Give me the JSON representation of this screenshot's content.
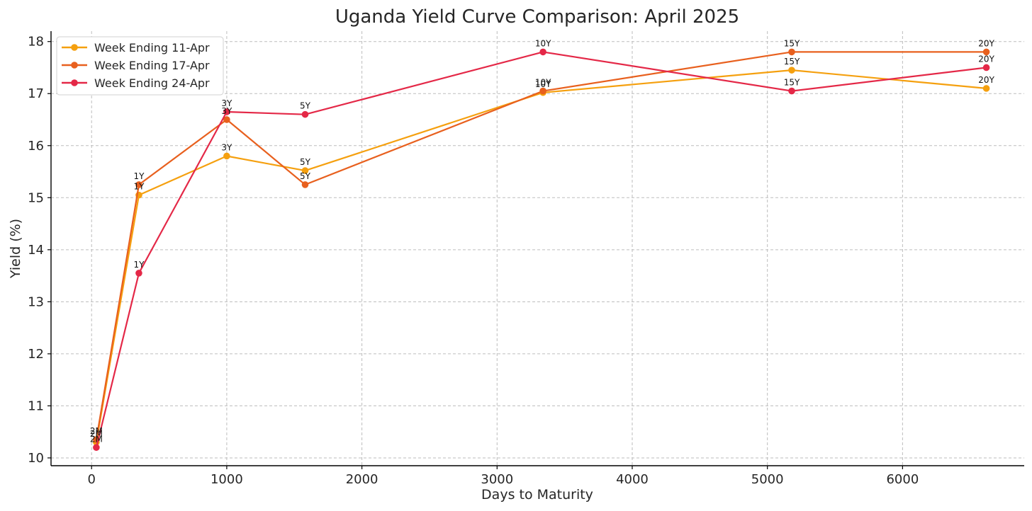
{
  "chart_data": {
    "type": "line",
    "title": "Uganda Yield Curve Comparison: April 2025",
    "xlabel": "Days to Maturity",
    "ylabel": "Yield (%)",
    "xlim": [
      -300,
      6900
    ],
    "ylim": [
      9.85,
      18.2
    ],
    "xticks": [
      0,
      1000,
      2000,
      3000,
      4000,
      5000,
      6000
    ],
    "yticks": [
      10,
      11,
      12,
      13,
      14,
      15,
      16,
      17,
      18
    ],
    "xtick_labels": [
      "0",
      "1000",
      "2000",
      "3000",
      "4000",
      "5000",
      "6000"
    ],
    "ytick_labels": [
      "10",
      "11",
      "12",
      "13",
      "14",
      "15",
      "16",
      "17",
      "18"
    ],
    "grid": true,
    "legend_position": "top-left",
    "series": [
      {
        "name": "Week Ending 11-Apr",
        "color": "#f5a00f",
        "x": [
          35,
          350,
          1000,
          1580,
          3340,
          5180,
          6620
        ],
        "y": [
          10.3,
          15.05,
          15.8,
          15.52,
          17.02,
          17.45,
          17.1
        ],
        "labels": [
          "2M",
          "1Y",
          "3Y",
          "5Y",
          "10Y",
          "15Y",
          "20Y"
        ]
      },
      {
        "name": "Week Ending 17-Apr",
        "color": "#e8601e",
        "x": [
          35,
          350,
          1000,
          1580,
          3340,
          5180,
          6620
        ],
        "y": [
          10.35,
          15.25,
          16.5,
          15.25,
          17.05,
          17.8,
          17.8
        ],
        "labels": [
          "2M",
          "1Y",
          "3Y",
          "5Y",
          "10Y",
          "15Y",
          "20Y"
        ]
      },
      {
        "name": "Week Ending 24-Apr",
        "color": "#e42847",
        "x": [
          35,
          350,
          1000,
          1580,
          3340,
          5180,
          6620
        ],
        "y": [
          10.2,
          13.55,
          16.65,
          16.6,
          17.8,
          17.05,
          17.5
        ],
        "labels": [
          "2M",
          "1Y",
          "3Y",
          "5Y",
          "10Y",
          "15Y",
          "20Y"
        ]
      }
    ]
  }
}
